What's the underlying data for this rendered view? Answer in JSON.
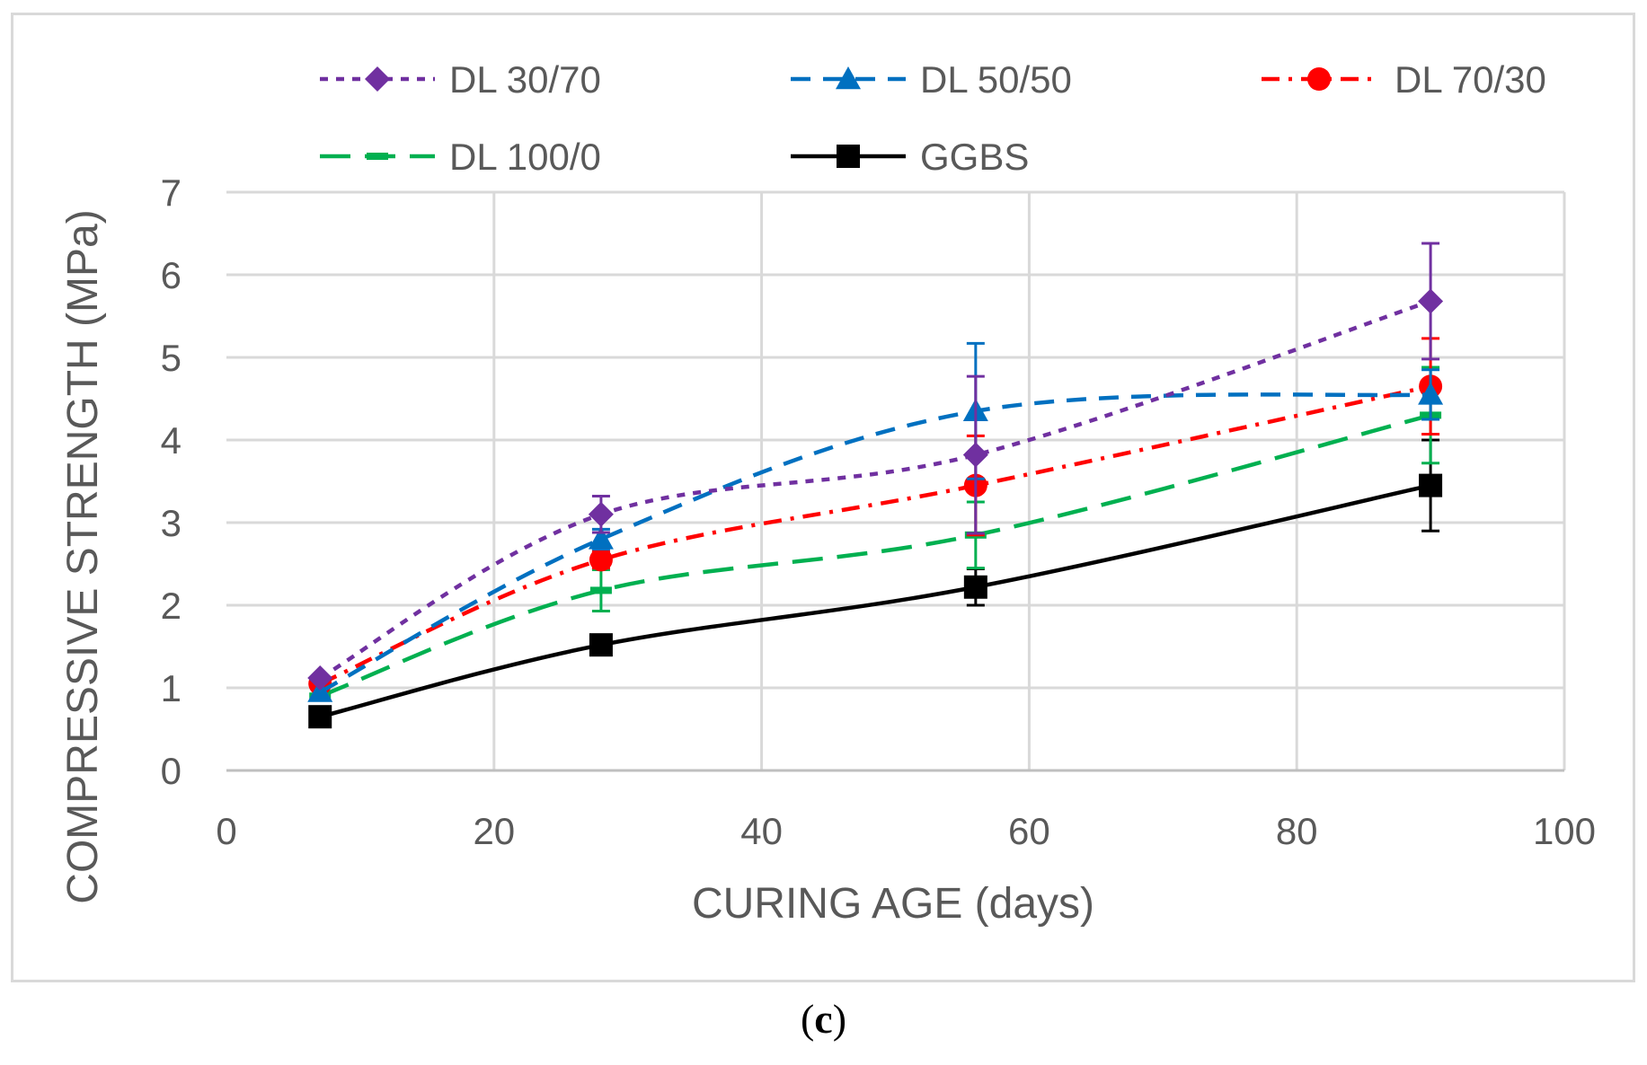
{
  "chart_data": {
    "type": "line",
    "title": "",
    "xlabel": "CURING AGE (days)",
    "ylabel": "COMPRESSIVE STRENGTH (MPa)",
    "xlim": [
      0,
      100
    ],
    "ylim": [
      0,
      7
    ],
    "xticks": [
      0,
      20,
      40,
      60,
      80,
      100
    ],
    "yticks": [
      0,
      1,
      2,
      3,
      4,
      5,
      6,
      7
    ],
    "grid": true,
    "legend_position": "top",
    "x": [
      7,
      28,
      56,
      90
    ],
    "series": [
      {
        "name": "DL 30/70",
        "values": [
          1.12,
          3.1,
          3.82,
          5.68
        ],
        "errors": [
          0.05,
          0.22,
          0.95,
          0.7
        ],
        "color": "#7030a0",
        "marker": "diamond",
        "dash": "dotted"
      },
      {
        "name": "DL 50/50",
        "values": [
          0.95,
          2.8,
          4.35,
          4.55
        ],
        "errors": [
          0.05,
          0.12,
          0.82,
          0.3
        ],
        "color": "#0070c0",
        "marker": "triangle",
        "dash": "dashed"
      },
      {
        "name": "DL 70/30",
        "values": [
          1.05,
          2.55,
          3.45,
          4.65
        ],
        "errors": [
          0.05,
          0.1,
          0.6,
          0.58
        ],
        "color": "#ff0000",
        "marker": "circle",
        "dash": "dashdot"
      },
      {
        "name": "DL 100/0",
        "values": [
          0.9,
          2.18,
          2.85,
          4.3
        ],
        "errors": [
          0.05,
          0.25,
          0.4,
          0.58
        ],
        "color": "#00b050",
        "marker": "dash",
        "dash": "longdash"
      },
      {
        "name": "GGBS",
        "values": [
          0.65,
          1.52,
          2.22,
          3.45
        ],
        "errors": [
          0.05,
          0.05,
          0.22,
          0.55
        ],
        "color": "#000000",
        "marker": "square",
        "dash": "solid"
      }
    ]
  },
  "panel_label": "c"
}
